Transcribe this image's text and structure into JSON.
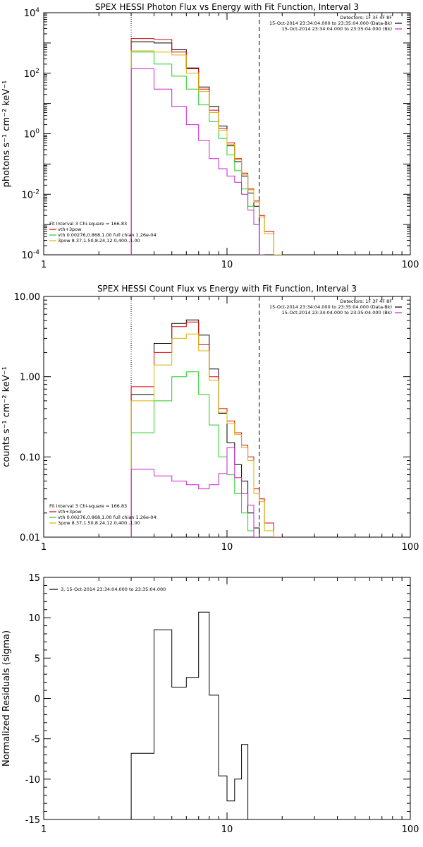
{
  "colors": {
    "black": "#000000",
    "red": "#e00000",
    "green": "#22cc22",
    "yellow": "#d8b400",
    "magenta": "#cc22cc"
  },
  "chart_data": [
    {
      "type": "line",
      "title": "SPEX HESSI Photon Flux vs Energy with Fit Function, Interval 3",
      "xlabel": "",
      "ylabel": "photons s⁻¹ cm⁻² keV⁻¹",
      "xscale": "log",
      "yscale": "log",
      "xlim": [
        1,
        100
      ],
      "ylim": [
        0.0001,
        10000
      ],
      "x_tick_labels": [
        {
          "v": 1,
          "t": "1"
        },
        {
          "v": 10,
          "t": "10"
        },
        {
          "v": 100,
          "t": "100"
        }
      ],
      "y_tick_labels": [
        {
          "v": 0.0001,
          "b": "10",
          "e": "-4"
        },
        {
          "v": 0.01,
          "b": "10",
          "e": "-2"
        },
        {
          "v": 1,
          "b": "10",
          "e": "0"
        },
        {
          "v": 100,
          "b": "10",
          "e": "2"
        },
        {
          "v": 10000,
          "b": "10",
          "e": "4"
        }
      ],
      "vlines": [
        {
          "x": 3,
          "style": "dotted"
        },
        {
          "x": 15,
          "style": "dashed"
        }
      ],
      "legend_tr": [
        {
          "text": "Detectors: 1F 3F 4F 8F",
          "color": ""
        },
        {
          "text": "15-Oct-2014 23:34:04.000 to 23:35:04.000 (Data-Bk)",
          "color": "#000000"
        },
        {
          "text": "15-Oct-2014 23:34:04.000 to 23:35:04.000 (Bk)",
          "color": "#cc22cc"
        }
      ],
      "legend_bl": [
        {
          "text": "Fit Interval 3   Chi-square = 166.83",
          "color": ""
        },
        {
          "text": "vth+3pow",
          "color": "#e00000"
        },
        {
          "text": "vth 0.00276,0.868,1.00  full chian 1.26e-04",
          "color": "#22cc22"
        },
        {
          "text": "3pow 8.37,1.50,8.24,12.0,400.,1.00",
          "color": "#d8b400"
        }
      ],
      "bin_edges": [
        3,
        4,
        5,
        6,
        7,
        8,
        9,
        10,
        11,
        12,
        13,
        14,
        15,
        16,
        18,
        20
      ],
      "series": [
        {
          "name": "Data-Bk",
          "color": "#000000",
          "values": [
            1100,
            1000,
            600,
            150,
            35,
            8,
            1.8,
            0.4,
            0.12,
            0.04,
            0.011,
            0.004
          ]
        },
        {
          "name": "vth+3pow",
          "color": "#e00000",
          "values": [
            1400,
            1300,
            500,
            140,
            30,
            6,
            1.5,
            0.5,
            0.15,
            0.05,
            0.015,
            0.006,
            0.002,
            0.0006,
            0.0001
          ]
        },
        {
          "name": "vth",
          "color": "#22cc22",
          "values": [
            500,
            200,
            80,
            30,
            9,
            2.5,
            0.7,
            0.2,
            0.06,
            0.015,
            0.004,
            0.001,
            0.0001
          ]
        },
        {
          "name": "3pow",
          "color": "#d8b400",
          "values": [
            550,
            500,
            400,
            100,
            25,
            5,
            1.3,
            0.45,
            0.14,
            0.045,
            0.014,
            0.0055,
            0.0018,
            0.0005,
            0.0001
          ]
        },
        {
          "name": "Bk",
          "color": "#cc22cc",
          "values": [
            140,
            30,
            8,
            2,
            0.6,
            0.15,
            0.07,
            0.04,
            0.025,
            0.01,
            0.003,
            0.001,
            0.0001
          ]
        }
      ]
    },
    {
      "type": "line",
      "title": "SPEX HESSI Count Flux vs Energy with Fit Function, Interval 3",
      "xlabel": "",
      "ylabel": "counts s⁻¹ cm⁻² keV⁻¹",
      "xscale": "log",
      "yscale": "log",
      "xlim": [
        1,
        100
      ],
      "ylim": [
        0.01,
        10
      ],
      "x_tick_labels": [
        {
          "v": 1,
          "t": "1"
        },
        {
          "v": 10,
          "t": "10"
        },
        {
          "v": 100,
          "t": "100"
        }
      ],
      "y_tick_labels": [
        {
          "v": 0.01,
          "t": "0.01"
        },
        {
          "v": 0.1,
          "t": "0.10"
        },
        {
          "v": 1,
          "t": "1.00"
        },
        {
          "v": 10,
          "t": "10.00"
        }
      ],
      "vlines": [
        {
          "x": 3,
          "style": "dotted"
        },
        {
          "x": 15,
          "style": "dashed"
        }
      ],
      "legend_tr": [
        {
          "text": "Detectors: 1F 3F 4F 8F",
          "color": ""
        },
        {
          "text": "15-Oct-2014 23:34:04.000 to 23:35:04.000 (Data-Bk)",
          "color": "#000000"
        },
        {
          "text": "15-Oct-2014 23:34:04.000 to 23:35:04.000 (Bk)",
          "color": "#cc22cc"
        }
      ],
      "legend_bl": [
        {
          "text": "Fit Interval 3   Chi-square = 166.83",
          "color": ""
        },
        {
          "text": "vth+3pow",
          "color": "#e00000"
        },
        {
          "text": "vth 0.00276,0.868,1.00  full chian 1.26e-04",
          "color": "#22cc22"
        },
        {
          "text": "3pow 8.37,1.50,8.24,12.0,400.,1.00",
          "color": "#d8b400"
        }
      ],
      "bin_edges": [
        3,
        4,
        5,
        6,
        7,
        8,
        9,
        10,
        11,
        12,
        13,
        14,
        15,
        16,
        18,
        20
      ],
      "series": [
        {
          "name": "Data-Bk",
          "color": "#000000",
          "values": [
            0.6,
            2.6,
            4.6,
            5.1,
            3.3,
            1.25,
            0.35,
            0.15,
            0.08,
            0.05,
            0.02,
            0.013,
            0.01
          ]
        },
        {
          "name": "vth+3pow",
          "color": "#e00000",
          "values": [
            0.75,
            2.0,
            4.2,
            4.8,
            2.5,
            1.0,
            0.4,
            0.28,
            0.2,
            0.14,
            0.1,
            0.04,
            0.03,
            0.015,
            0.01
          ]
        },
        {
          "name": "vth",
          "color": "#22cc22",
          "values": [
            0.2,
            0.5,
            1.0,
            1.15,
            0.6,
            0.25,
            0.1,
            0.06,
            0.035,
            0.02,
            0.012,
            0.01
          ]
        },
        {
          "name": "3pow",
          "color": "#d8b400",
          "values": [
            0.5,
            1.4,
            3.0,
            3.4,
            2.1,
            0.9,
            0.36,
            0.26,
            0.19,
            0.13,
            0.09,
            0.035,
            0.028,
            0.012
          ]
        },
        {
          "name": "Bk",
          "color": "#cc22cc",
          "values": [
            0.07,
            0.058,
            0.05,
            0.045,
            0.04,
            0.045,
            0.062,
            0.13,
            0.055,
            0.035,
            0.025,
            0.01
          ]
        }
      ]
    },
    {
      "type": "line",
      "title": "",
      "xlabel": "",
      "ylabel": "Normalized Residuals (sigma)",
      "xscale": "log",
      "yscale": "linear",
      "xlim": [
        1,
        100
      ],
      "ylim": [
        -15,
        15
      ],
      "x_tick_labels": [
        {
          "v": 1,
          "t": "1"
        },
        {
          "v": 10,
          "t": "10"
        },
        {
          "v": 100,
          "t": "100"
        }
      ],
      "y_tick_labels": [
        {
          "v": -15,
          "t": "-15"
        },
        {
          "v": -10,
          "t": "-10"
        },
        {
          "v": -5,
          "t": "-5"
        },
        {
          "v": 0,
          "t": "0"
        },
        {
          "v": 5,
          "t": "5"
        },
        {
          "v": 10,
          "t": "10"
        },
        {
          "v": 15,
          "t": "15"
        }
      ],
      "legend_tl": [
        {
          "text": "3, 15-Oct-2014 23:34:04.000 to 23:35:04.000",
          "color": "#000000"
        }
      ],
      "bin_edges": [
        3,
        4,
        5,
        6,
        7,
        8,
        9,
        10,
        11,
        12,
        13,
        14,
        15
      ],
      "series": [
        {
          "name": "3, 15-Oct-2014 23:34:04.000 to 23:35:04.000",
          "color": "#000000",
          "values": [
            -6.8,
            8.5,
            1.4,
            2.6,
            10.7,
            0.4,
            -9.6,
            -12.7,
            -10.0,
            -5.7
          ]
        }
      ]
    }
  ]
}
